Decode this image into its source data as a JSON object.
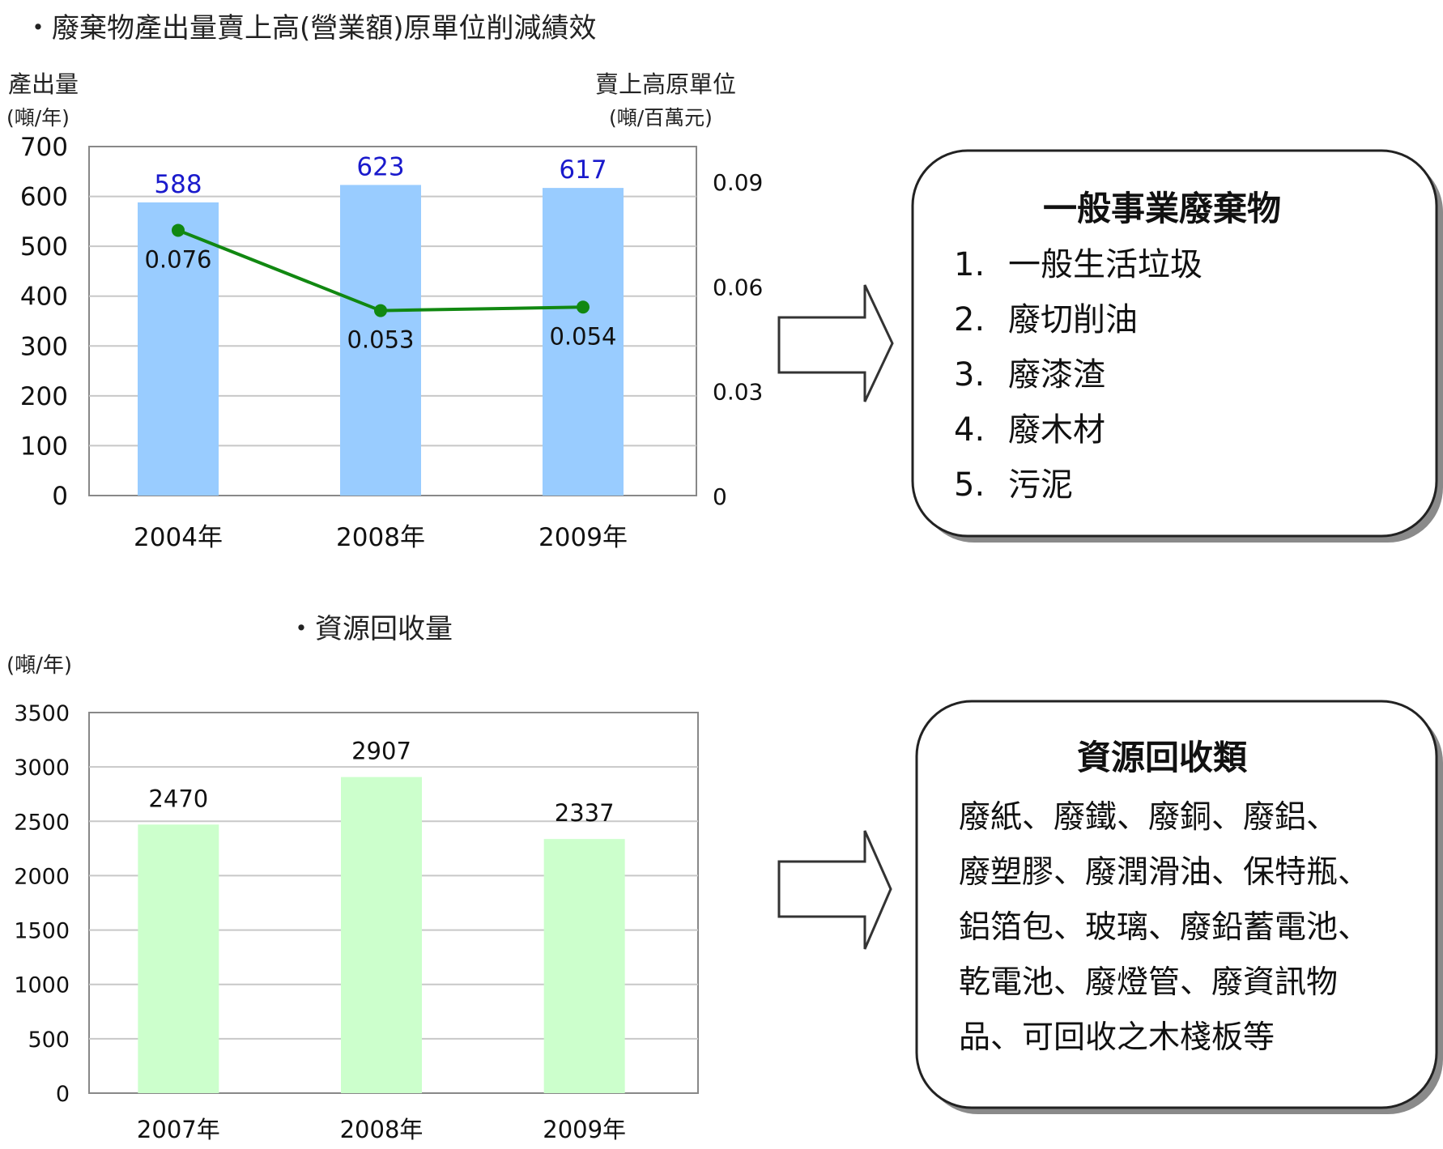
{
  "chart_data": [
    {
      "type": "bar+line",
      "title": "・廢棄物產出量賣上高(營業額)原單位削減績效",
      "ylabel_left": "產出量",
      "ylabel_left_unit": "(噸/年)",
      "ylabel_right": "賣上高原單位",
      "ylabel_right_unit": "(噸/百萬元)",
      "categories": [
        "2004年",
        "2008年",
        "2009年"
      ],
      "bar_values": [
        588,
        623,
        617
      ],
      "line_values": [
        0.076,
        0.053,
        0.054
      ],
      "bar_labels": [
        "588",
        "623",
        "617"
      ],
      "line_labels": [
        "0.076",
        "0.053",
        "0.054"
      ],
      "ylim_left": [
        0,
        700
      ],
      "left_ticks": [
        "0",
        "100",
        "200",
        "300",
        "400",
        "500",
        "600",
        "700"
      ],
      "ylim_right": [
        0,
        0.1
      ],
      "right_ticks": [
        {
          "label": "0",
          "value": 0
        },
        {
          "label": "0.03",
          "value": 0.03
        },
        {
          "label": "0.06",
          "value": 0.06
        },
        {
          "label": "0.09",
          "value": 0.09
        }
      ],
      "grid": true,
      "colors": {
        "bar": "#99ccff",
        "line": "#118811",
        "bar_label": "#1a1acc"
      }
    },
    {
      "type": "bar",
      "title": "・資源回收量",
      "ylabel": "(噸/年)",
      "categories": [
        "2007年",
        "2008年",
        "2009年"
      ],
      "values": [
        2470,
        2907,
        2337
      ],
      "value_labels": [
        "2470",
        "2907",
        "2337"
      ],
      "ylim": [
        0,
        3500
      ],
      "ticks": [
        "0",
        "500",
        "1000",
        "1500",
        "2000",
        "2500",
        "3000",
        "3500"
      ],
      "grid": true,
      "colors": {
        "bar": "#ccffcc"
      }
    }
  ],
  "box1": {
    "title": "一般事業廢棄物",
    "items": [
      {
        "num": "1.",
        "text": "一般生活垃圾"
      },
      {
        "num": "2.",
        "text": "廢切削油"
      },
      {
        "num": "3.",
        "text": "廢漆渣"
      },
      {
        "num": "4.",
        "text": "廢木材"
      },
      {
        "num": "5.",
        "text": "污泥"
      }
    ]
  },
  "box2": {
    "title": "資源回收類",
    "lines": [
      "廢紙、廢鐵、廢銅、廢鋁、",
      "廢塑膠、廢潤滑油、保特瓶、",
      "鋁箔包、玻璃、廢鉛蓄電池、",
      "乾電池、廢燈管、廢資訊物",
      "品、可回收之木棧板等"
    ]
  }
}
